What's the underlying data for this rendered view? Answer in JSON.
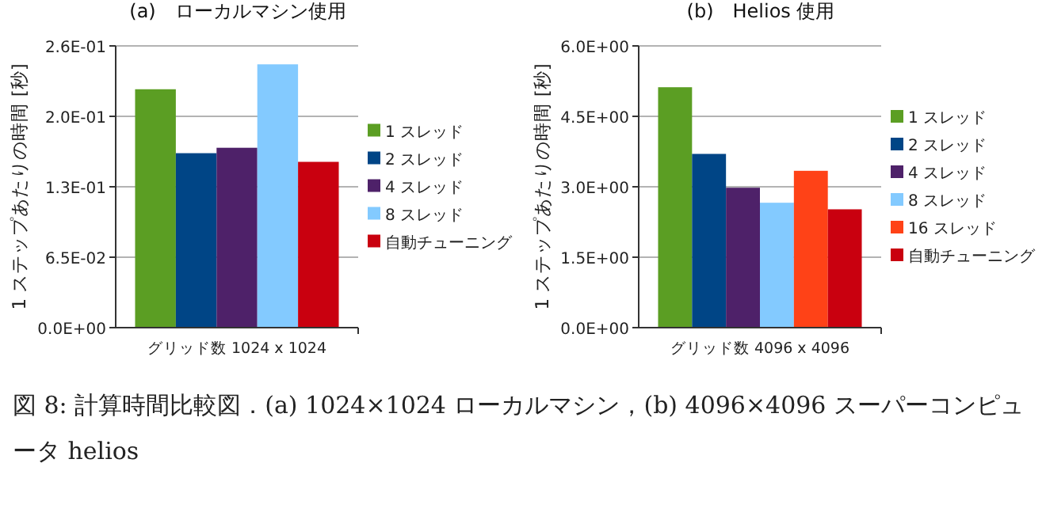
{
  "chart_data": [
    {
      "type": "bar",
      "title": "(a)　ローカルマシン使用",
      "ylabel": "1 ステップあたりの時間 [秒]",
      "xlabel": "グリッド数  1024 x 1024",
      "categories": [
        null,
        null,
        null,
        null,
        null
      ],
      "series": [
        {
          "name": "1 スレッド",
          "color": "#5b9e23",
          "values": [
            0.22,
            null,
            null,
            null,
            null
          ]
        },
        {
          "name": "2 スレッド",
          "color": "#004586",
          "values": [
            null,
            0.161,
            null,
            null,
            null
          ]
        },
        {
          "name": "4 スレッド",
          "color": "#4e2169",
          "values": [
            null,
            null,
            0.166,
            null,
            null
          ]
        },
        {
          "name": "8 スレッド",
          "color": "#83caff",
          "values": [
            null,
            null,
            null,
            0.243,
            null
          ]
        },
        {
          "name": "自動チューニング",
          "color": "#c9000f",
          "values": [
            null,
            null,
            null,
            null,
            0.153
          ]
        }
      ],
      "ylim": [
        0,
        0.26
      ],
      "yticks": [
        {
          "value": 0,
          "label": "0.0E+00"
        },
        {
          "value": 0.065,
          "label": "6.5E-02"
        },
        {
          "value": 0.13,
          "label": "1.3E-01"
        },
        {
          "value": 0.195,
          "label": "2.0E-01"
        },
        {
          "value": 0.26,
          "label": "2.6E-01"
        }
      ],
      "grid": "y",
      "legend": "right",
      "annotations": [
        "図 8: 計算時間比較図．(a) 1024×1024 ローカルマシン，(b) 4096×4096 スーパーコンピュータ helios"
      ]
    },
    {
      "type": "bar",
      "title": "(b)　Helios 使用",
      "ylabel": "1 ステップあたりの時間 [秒]",
      "xlabel": "グリッド数  4096 x 4096",
      "categories": [
        null,
        null,
        null,
        null,
        null,
        null
      ],
      "series": [
        {
          "name": "1 スレッド",
          "color": "#5b9e23",
          "values": [
            5.12,
            null,
            null,
            null,
            null,
            null
          ]
        },
        {
          "name": "2 スレッド",
          "color": "#004586",
          "values": [
            null,
            3.7,
            null,
            null,
            null,
            null
          ]
        },
        {
          "name": "4 スレッド",
          "color": "#4e2169",
          "values": [
            null,
            null,
            2.98,
            null,
            null,
            null
          ]
        },
        {
          "name": "8 スレッド",
          "color": "#83caff",
          "values": [
            null,
            null,
            null,
            2.66,
            null,
            null
          ]
        },
        {
          "name": "16 スレッド",
          "color": "#ff4217",
          "values": [
            null,
            null,
            null,
            null,
            3.34,
            null
          ]
        },
        {
          "name": "自動チューニング",
          "color": "#c9000f",
          "values": [
            null,
            null,
            null,
            null,
            null,
            2.52
          ]
        }
      ],
      "ylim": [
        0,
        6
      ],
      "yticks": [
        {
          "value": 0,
          "label": "0.0E+00"
        },
        {
          "value": 1.5,
          "label": "1.5E+00"
        },
        {
          "value": 3,
          "label": "3.0E+00"
        },
        {
          "value": 4.5,
          "label": "4.5E+00"
        },
        {
          "value": 6,
          "label": "6.0E+00"
        }
      ],
      "grid": "y",
      "legend": "right"
    }
  ]
}
